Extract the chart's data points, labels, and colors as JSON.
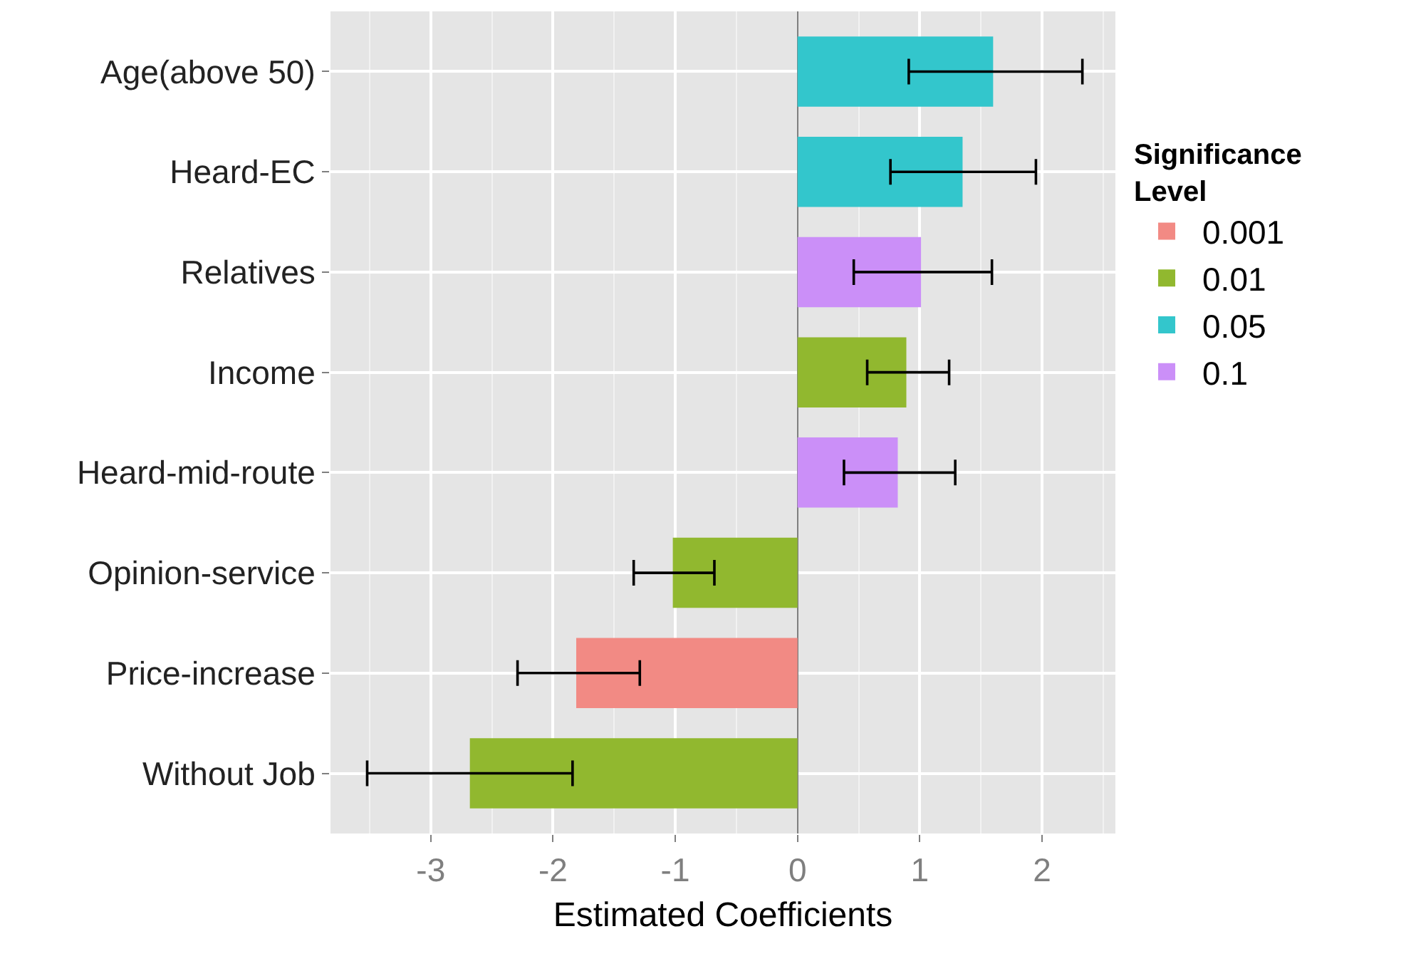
{
  "chart_data": {
    "type": "bar",
    "orientation": "horizontal",
    "xlabel": "Estimated Coefficients",
    "legend_title": "Significance Level",
    "legend": "right",
    "grid": true,
    "categories": [
      "Age(above 50)",
      "Heard-EC",
      "Relatives",
      "Income",
      "Heard-mid-route",
      "Opinion-service",
      "Price-increase",
      "Without Job"
    ],
    "xlim": [
      -3.82,
      2.6
    ],
    "xticks": [
      -3,
      -2,
      -1,
      0,
      1,
      2
    ],
    "series": [
      {
        "name": "0.001",
        "color": "#f28a84",
        "values": [
          null,
          null,
          null,
          null,
          null,
          null,
          -1.81,
          null
        ],
        "errors": [
          null,
          null,
          null,
          null,
          null,
          null,
          [
            -2.29,
            -1.29
          ],
          null
        ]
      },
      {
        "name": "0.01",
        "color": "#91b82f",
        "values": [
          null,
          null,
          null,
          0.89,
          null,
          -1.02,
          null,
          -2.68
        ],
        "errors": [
          null,
          null,
          null,
          [
            0.57,
            1.24
          ],
          null,
          [
            -1.34,
            -0.68
          ],
          null,
          [
            -3.52,
            -1.84
          ]
        ]
      },
      {
        "name": "0.05",
        "color": "#33c6cc",
        "values": [
          1.6,
          1.35,
          null,
          null,
          null,
          null,
          null,
          null
        ],
        "errors": [
          [
            0.91,
            2.33
          ],
          [
            0.76,
            1.95
          ],
          null,
          null,
          null,
          null,
          null,
          null
        ]
      },
      {
        "name": "0.1",
        "color": "#cb8ff8",
        "values": [
          null,
          null,
          1.01,
          null,
          0.82,
          null,
          null,
          null
        ],
        "errors": [
          null,
          null,
          [
            0.46,
            1.59
          ],
          null,
          [
            0.38,
            1.29
          ],
          null,
          null,
          null
        ]
      }
    ]
  }
}
